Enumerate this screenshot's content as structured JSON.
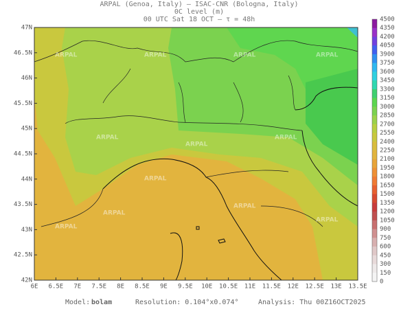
{
  "header": {
    "line1": "ARPAL (Genoa, Italy)  –  ISAC-CNR (Bologna, Italy)",
    "line2": "0C level (m)",
    "line3": "00 UTC Sat 18 OCT  –  τ = 48h"
  },
  "watermark": "ARPAL",
  "axes": {
    "lat_labels": [
      "47N",
      "46.5N",
      "46N",
      "45.5N",
      "45N",
      "44.5N",
      "44N",
      "43.5N",
      "43N",
      "42.5N",
      "42N"
    ],
    "lon_labels": [
      "6E",
      "6.5E",
      "7E",
      "7.5E",
      "8E",
      "8.5E",
      "9E",
      "9.5E",
      "10E",
      "10.5E",
      "11E",
      "11.5E",
      "12E",
      "12.5E",
      "13E",
      "13.5E"
    ]
  },
  "colorbar": {
    "ticks": [
      4500,
      4350,
      4200,
      4050,
      3900,
      3750,
      3600,
      3450,
      3300,
      3150,
      3000,
      2850,
      2700,
      2550,
      2400,
      2250,
      2100,
      1950,
      1800,
      1650,
      1500,
      1350,
      1200,
      1050,
      900,
      750,
      600,
      450,
      300,
      150,
      0
    ]
  },
  "footer": {
    "model_label": "Model:",
    "model": "bolam",
    "resolution": "Resolution: 0.104°x0.074°",
    "analysis": "Analysis: Thu 00Z16OCT2025"
  }
}
